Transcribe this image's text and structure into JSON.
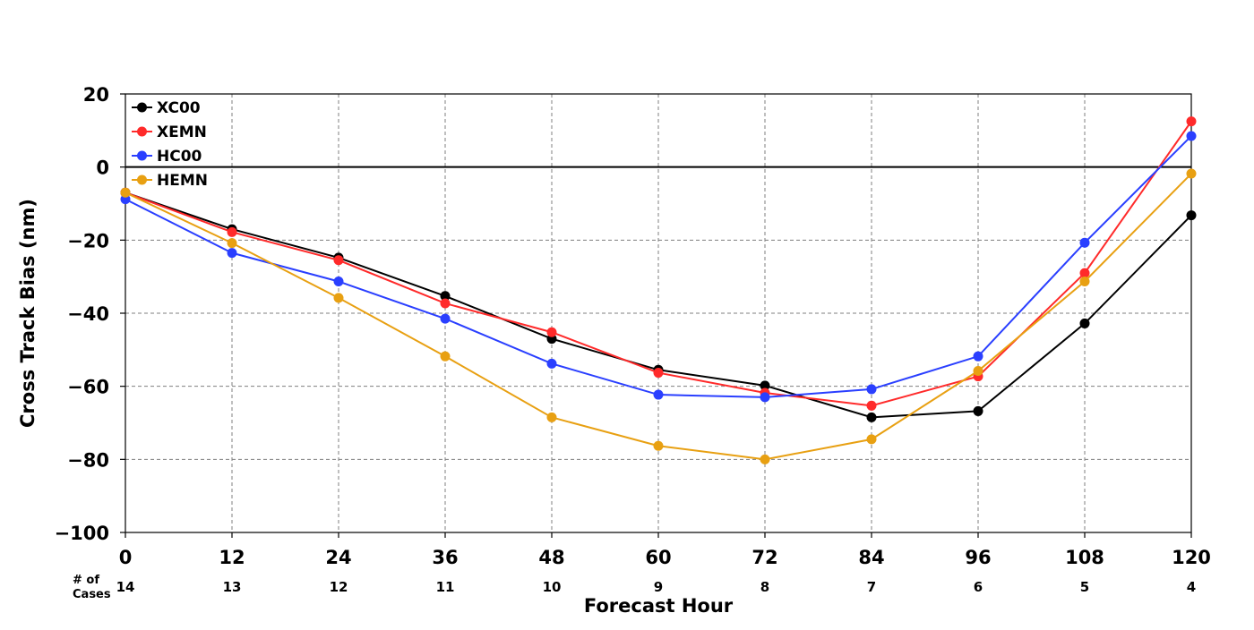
{
  "chart_data": {
    "type": "line",
    "xlabel": "Forecast Hour",
    "ylabel": "Cross Track Bias (nm)",
    "x": [
      0,
      12,
      24,
      36,
      48,
      60,
      72,
      84,
      96,
      108,
      120
    ],
    "ylim": [
      -100,
      20
    ],
    "xlim": [
      0,
      120
    ],
    "yticks": [
      20,
      0,
      -20,
      -40,
      -60,
      -80,
      -100
    ],
    "ytick_labels": [
      "20",
      "0",
      "−20",
      "−40",
      "−60",
      "−80",
      "−100"
    ],
    "xtick_labels": [
      "0",
      "12",
      "24",
      "36",
      "48",
      "60",
      "72",
      "84",
      "96",
      "108",
      "120"
    ],
    "cases_label_line1": "# of",
    "cases_label_line2": "Cases",
    "cases": [
      "14",
      "13",
      "12",
      "11",
      "10",
      "9",
      "8",
      "7",
      "6",
      "5",
      "4"
    ],
    "grid": true,
    "legend_position": "top-left",
    "series": [
      {
        "name": "XC00",
        "color": "#000000",
        "values": [
          -7,
          -17,
          -24.8,
          -35.3,
          -47,
          -55.5,
          -59.8,
          -68.5,
          -66.8,
          -42.8,
          -13.2
        ]
      },
      {
        "name": "XEMN",
        "color": "#ff2a2a",
        "values": [
          -7,
          -17.8,
          -25.5,
          -37.3,
          -45.2,
          -56.3,
          -61.8,
          -65.3,
          -57.3,
          -29,
          12.5
        ]
      },
      {
        "name": "HC00",
        "color": "#2a3fff",
        "values": [
          -8.8,
          -23.5,
          -31.3,
          -41.5,
          -53.8,
          -62.3,
          -63,
          -60.8,
          -51.8,
          -20.7,
          8.5
        ]
      },
      {
        "name": "HEMN",
        "color": "#e8a012",
        "values": [
          -7,
          -20.8,
          -35.8,
          -51.8,
          -68.5,
          -76.3,
          -80,
          -74.5,
          -55.8,
          -31.3,
          -1.8
        ]
      }
    ]
  }
}
